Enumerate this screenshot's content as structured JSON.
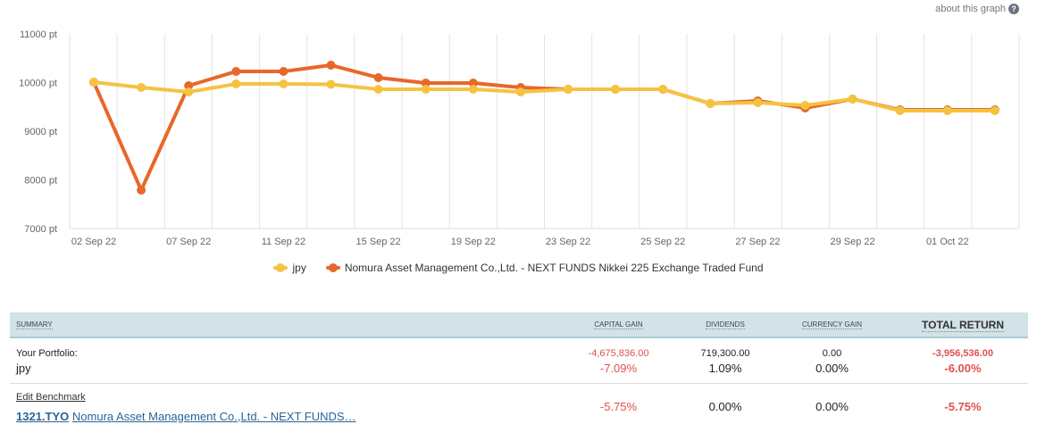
{
  "header": {
    "about_link": "about this graph",
    "help_icon": "?"
  },
  "chart_data": {
    "type": "line",
    "title": "",
    "xlabel": "",
    "ylabel": "",
    "ylim": [
      7000,
      11000
    ],
    "yticks": [
      "7000 pt",
      "8000 pt",
      "9000 pt",
      "10000 pt",
      "11000 pt"
    ],
    "ytick_values": [
      7000,
      8000,
      9000,
      10000,
      11000
    ],
    "x_tick_labels": [
      "02 Sep 22",
      "07 Sep 22",
      "11 Sep 22",
      "15 Sep 22",
      "19 Sep 22",
      "23 Sep 22",
      "25 Sep 22",
      "27 Sep 22",
      "29 Sep 22",
      "01 Oct 22"
    ],
    "x_tick_indices": [
      0,
      2,
      4,
      6,
      8,
      10,
      12,
      14,
      16,
      18
    ],
    "grid": true,
    "legend_position": "bottom",
    "series": [
      {
        "name": "jpy",
        "color": "#f5c342",
        "values": [
          10009,
          9899,
          9807,
          9972,
          9972,
          9963,
          9862,
          9862,
          9862,
          9807,
          9862,
          9862,
          9862,
          9569,
          9587,
          9532,
          9661,
          9422,
          9422,
          9422
        ]
      },
      {
        "name": "Nomura Asset Management Co.,Ltd. - NEXT FUNDS Nikkei 225 Exchange Traded Fund",
        "color": "#e8672a",
        "values": [
          10009,
          7789,
          9936,
          10229,
          10229,
          10358,
          10101,
          9991,
          9991,
          9899,
          9862,
          9862,
          9862,
          9569,
          9624,
          9477,
          9661,
          9440,
          9440,
          9440
        ]
      }
    ]
  },
  "summary": {
    "headers": {
      "summary": "Summary",
      "capital_gain": "Capital Gain",
      "dividends": "Dividends",
      "currency_gain": "Currency Gain",
      "total_return": "Total Return"
    },
    "portfolio": {
      "label": "Your Portfolio:",
      "name": "jpy",
      "capital_gain": "-4,675,836.00",
      "capital_gain_pct": "-7.09%",
      "dividends": "719,300.00",
      "dividends_pct": "1.09%",
      "currency_gain": "0.00",
      "currency_gain_pct": "0.00%",
      "total_return": "-3,956,536.00",
      "total_return_pct": "-6.00%"
    },
    "benchmark": {
      "edit_label": "Edit Benchmark",
      "ticker": "1321.TYO",
      "name": "Nomura Asset Management Co.,Ltd. - NEXT FUNDS…",
      "capital_gain_pct": "-5.75%",
      "dividends_pct": "0.00%",
      "currency_gain_pct": "0.00%",
      "total_return_pct": "-5.75%"
    }
  }
}
